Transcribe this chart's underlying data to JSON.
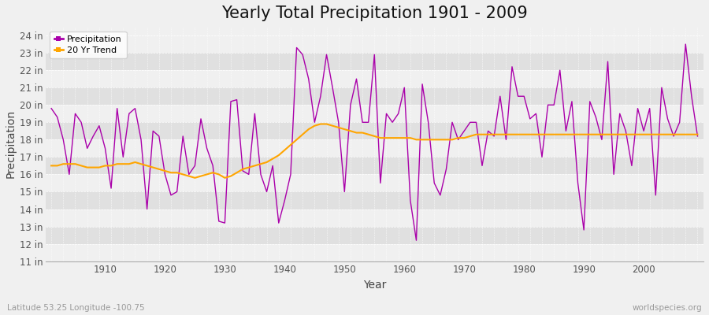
{
  "title": "Yearly Total Precipitation 1901 - 2009",
  "xlabel": "Year",
  "ylabel": "Precipitation",
  "subtitle": "Latitude 53.25 Longitude -100.75",
  "watermark": "worldspecies.org",
  "years": [
    1901,
    1902,
    1903,
    1904,
    1905,
    1906,
    1907,
    1908,
    1909,
    1910,
    1911,
    1912,
    1913,
    1914,
    1915,
    1916,
    1917,
    1918,
    1919,
    1920,
    1921,
    1922,
    1923,
    1924,
    1925,
    1926,
    1927,
    1928,
    1929,
    1930,
    1931,
    1932,
    1933,
    1934,
    1935,
    1936,
    1937,
    1938,
    1939,
    1940,
    1941,
    1942,
    1943,
    1944,
    1945,
    1946,
    1947,
    1948,
    1949,
    1950,
    1951,
    1952,
    1953,
    1954,
    1955,
    1956,
    1957,
    1958,
    1959,
    1960,
    1961,
    1962,
    1963,
    1964,
    1965,
    1966,
    1967,
    1968,
    1969,
    1970,
    1971,
    1972,
    1973,
    1974,
    1975,
    1976,
    1977,
    1978,
    1979,
    1980,
    1981,
    1982,
    1983,
    1984,
    1985,
    1986,
    1987,
    1988,
    1989,
    1990,
    1991,
    1992,
    1993,
    1994,
    1995,
    1996,
    1997,
    1998,
    1999,
    2000,
    2001,
    2002,
    2003,
    2004,
    2005,
    2006,
    2007,
    2008,
    2009
  ],
  "precip": [
    19.8,
    19.3,
    18.0,
    16.0,
    19.5,
    19.0,
    17.5,
    18.2,
    18.8,
    17.5,
    15.2,
    19.8,
    17.0,
    19.5,
    19.8,
    18.0,
    14.0,
    18.5,
    18.2,
    16.0,
    14.8,
    15.0,
    18.2,
    16.0,
    16.5,
    19.2,
    17.5,
    16.5,
    13.3,
    13.2,
    20.2,
    20.3,
    16.2,
    16.0,
    19.5,
    16.0,
    15.0,
    16.5,
    13.2,
    14.5,
    16.0,
    23.3,
    22.9,
    21.5,
    19.0,
    20.5,
    22.9,
    21.0,
    19.0,
    15.0,
    20.0,
    21.5,
    19.0,
    19.0,
    22.9,
    15.5,
    19.5,
    19.0,
    19.5,
    21.0,
    14.5,
    12.2,
    21.2,
    19.0,
    15.5,
    14.8,
    16.3,
    19.0,
    18.0,
    18.5,
    19.0,
    19.0,
    16.5,
    18.5,
    18.2,
    20.5,
    18.0,
    22.2,
    20.5,
    20.5,
    19.2,
    19.5,
    17.0,
    20.0,
    20.0,
    22.0,
    18.5,
    20.2,
    15.5,
    12.8,
    20.2,
    19.3,
    18.0,
    22.5,
    16.0,
    19.5,
    18.5,
    16.5,
    19.8,
    18.5,
    19.8,
    14.8,
    21.0,
    19.2,
    18.2,
    19.0,
    23.5,
    20.5,
    18.2
  ],
  "trend": [
    16.5,
    16.5,
    16.6,
    16.6,
    16.6,
    16.5,
    16.4,
    16.4,
    16.4,
    16.5,
    16.5,
    16.6,
    16.6,
    16.6,
    16.7,
    16.6,
    16.5,
    16.4,
    16.3,
    16.2,
    16.1,
    16.1,
    16.0,
    15.9,
    15.8,
    15.9,
    16.0,
    16.1,
    16.0,
    15.8,
    15.9,
    16.1,
    16.3,
    16.4,
    16.5,
    16.6,
    16.7,
    16.9,
    17.1,
    17.4,
    17.7,
    18.0,
    18.3,
    18.6,
    18.8,
    18.9,
    18.9,
    18.8,
    18.7,
    18.6,
    18.5,
    18.4,
    18.4,
    18.3,
    18.2,
    18.1,
    18.1,
    18.1,
    18.1,
    18.1,
    18.1,
    18.0,
    18.0,
    18.0,
    18.0,
    18.0,
    18.0,
    18.0,
    18.1,
    18.1,
    18.2,
    18.3,
    18.3,
    18.3,
    18.3,
    18.3,
    18.3,
    18.3,
    18.3,
    18.3,
    18.3,
    18.3,
    18.3,
    18.3,
    18.3,
    18.3,
    18.3,
    18.3,
    18.3,
    18.3,
    18.3,
    18.3,
    18.3,
    18.3,
    18.3,
    18.3,
    18.3,
    18.3,
    18.3,
    18.3,
    18.3,
    18.3,
    18.3,
    18.3,
    18.3,
    18.3,
    18.3,
    18.3,
    18.3
  ],
  "precip_color": "#aa00aa",
  "trend_color": "#FFA500",
  "fig_bg_color": "#f0f0f0",
  "plot_bg_light": "#f0f0f0",
  "plot_bg_dark": "#e0e0e0",
  "ylim": [
    11,
    24.5
  ],
  "yticks": [
    11,
    12,
    13,
    14,
    15,
    16,
    17,
    18,
    19,
    20,
    21,
    22,
    23,
    24
  ],
  "xtick_years": [
    1910,
    1920,
    1930,
    1940,
    1950,
    1960,
    1970,
    1980,
    1990,
    2000
  ],
  "title_fontsize": 15,
  "label_fontsize": 10,
  "tick_fontsize": 8.5
}
